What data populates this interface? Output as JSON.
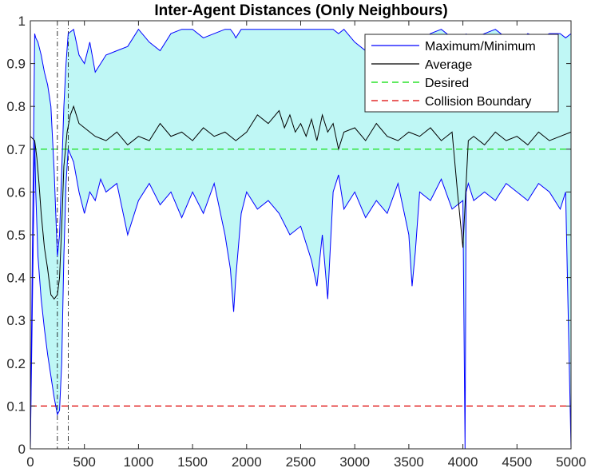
{
  "chart_data": {
    "type": "line",
    "title": "Inter-Agent Distances (Only Neighbours)",
    "xlabel": "",
    "ylabel": "",
    "xlim": [
      0,
      5000
    ],
    "ylim": [
      0,
      1
    ],
    "grid": false,
    "legend_position": "top-right",
    "x_ticks": [
      "0",
      "500",
      "1000",
      "1500",
      "2000",
      "2500",
      "3000",
      "3500",
      "4000",
      "4500",
      "5000"
    ],
    "y_ticks": [
      "0",
      "0.1",
      "0.2",
      "0.3",
      "0.4",
      "0.5",
      "0.6",
      "0.7",
      "0.8",
      "0.9",
      "1"
    ],
    "series": [
      {
        "name": "Maximum/Minimum",
        "color": "#0000ff",
        "fill": "#bff7f5",
        "x": [
          0,
          40,
          50,
          70,
          100,
          130,
          160,
          190,
          220,
          250,
          270,
          290,
          310,
          330,
          350,
          400,
          450,
          500,
          550,
          600,
          650,
          700,
          800,
          900,
          1000,
          1100,
          1200,
          1300,
          1400,
          1500,
          1600,
          1700,
          1800,
          1850,
          1880,
          1900,
          1950,
          2000,
          2100,
          2200,
          2300,
          2400,
          2500,
          2550,
          2600,
          2650,
          2700,
          2750,
          2800,
          2850,
          2900,
          3000,
          3100,
          3200,
          3300,
          3400,
          3500,
          3530,
          3560,
          3600,
          3700,
          3800,
          3900,
          4000,
          4020,
          4030,
          4050,
          4100,
          4200,
          4300,
          4400,
          4500,
          4600,
          4700,
          4800,
          4900,
          4950,
          5000
        ],
        "max": [
          0,
          0.97,
          0.96,
          0.95,
          0.92,
          0.88,
          0.85,
          0.8,
          0.65,
          0.45,
          0.5,
          0.65,
          0.8,
          0.9,
          0.97,
          0.98,
          0.92,
          0.9,
          0.95,
          0.88,
          0.9,
          0.92,
          0.93,
          0.94,
          0.98,
          0.95,
          0.93,
          0.97,
          0.98,
          0.98,
          0.96,
          0.97,
          0.98,
          0.98,
          0.97,
          0.96,
          0.98,
          0.98,
          0.98,
          0.98,
          0.98,
          0.98,
          0.98,
          0.98,
          0.98,
          0.98,
          0.98,
          0.98,
          0.98,
          0.97,
          0.98,
          0.95,
          0.93,
          0.92,
          0.95,
          0.9,
          0.86,
          0.84,
          0.9,
          0.95,
          0.97,
          0.98,
          0.96,
          0.95,
          0.95,
          0.97,
          0.95,
          0.96,
          0.97,
          0.98,
          0.96,
          0.95,
          0.97,
          0.96,
          0.97,
          0.97,
          0.96,
          0.97
        ],
        "min": [
          0,
          0.72,
          0.6,
          0.45,
          0.35,
          0.28,
          0.22,
          0.17,
          0.12,
          0.08,
          0.09,
          0.2,
          0.45,
          0.62,
          0.7,
          0.67,
          0.6,
          0.55,
          0.6,
          0.58,
          0.63,
          0.6,
          0.62,
          0.5,
          0.58,
          0.62,
          0.57,
          0.6,
          0.54,
          0.6,
          0.55,
          0.62,
          0.5,
          0.42,
          0.32,
          0.4,
          0.55,
          0.6,
          0.56,
          0.58,
          0.55,
          0.5,
          0.52,
          0.48,
          0.44,
          0.38,
          0.5,
          0.35,
          0.6,
          0.64,
          0.56,
          0.6,
          0.54,
          0.58,
          0.55,
          0.62,
          0.5,
          0.38,
          0.46,
          0.6,
          0.58,
          0.63,
          0.56,
          0.58,
          0.0,
          0.6,
          0.62,
          0.58,
          0.6,
          0.58,
          0.62,
          0.6,
          0.58,
          0.62,
          0.6,
          0.56,
          0.6,
          0.0
        ]
      },
      {
        "name": "Average",
        "color": "#000000",
        "x": [
          0,
          40,
          60,
          80,
          100,
          130,
          160,
          190,
          220,
          250,
          270,
          290,
          310,
          340,
          370,
          400,
          450,
          500,
          600,
          700,
          800,
          900,
          1000,
          1100,
          1200,
          1300,
          1400,
          1500,
          1600,
          1700,
          1800,
          1900,
          2000,
          2100,
          2200,
          2300,
          2350,
          2400,
          2450,
          2500,
          2550,
          2600,
          2650,
          2700,
          2750,
          2800,
          2850,
          2900,
          3000,
          3100,
          3200,
          3300,
          3400,
          3500,
          3600,
          3700,
          3800,
          3900,
          3950,
          4000,
          4050,
          4100,
          4200,
          4300,
          4400,
          4500,
          4600,
          4700,
          4800,
          4900,
          5000
        ],
        "values": [
          0.73,
          0.72,
          0.68,
          0.62,
          0.55,
          0.47,
          0.42,
          0.36,
          0.35,
          0.36,
          0.4,
          0.52,
          0.66,
          0.74,
          0.78,
          0.8,
          0.76,
          0.75,
          0.73,
          0.72,
          0.74,
          0.71,
          0.73,
          0.72,
          0.76,
          0.73,
          0.74,
          0.72,
          0.75,
          0.73,
          0.74,
          0.72,
          0.74,
          0.78,
          0.76,
          0.79,
          0.75,
          0.78,
          0.74,
          0.76,
          0.73,
          0.77,
          0.72,
          0.78,
          0.74,
          0.76,
          0.7,
          0.74,
          0.75,
          0.72,
          0.76,
          0.73,
          0.72,
          0.74,
          0.73,
          0.75,
          0.72,
          0.74,
          0.6,
          0.47,
          0.72,
          0.73,
          0.71,
          0.74,
          0.72,
          0.73,
          0.71,
          0.74,
          0.72,
          0.73,
          0.74
        ]
      },
      {
        "name": "Desired",
        "color": "#00dd00",
        "dash": "dashed",
        "y": 0.7
      },
      {
        "name": "Collision Boundary",
        "color": "#dd0000",
        "dash": "dashed",
        "y": 0.1
      }
    ],
    "vertical_markers": [
      250,
      350
    ]
  }
}
